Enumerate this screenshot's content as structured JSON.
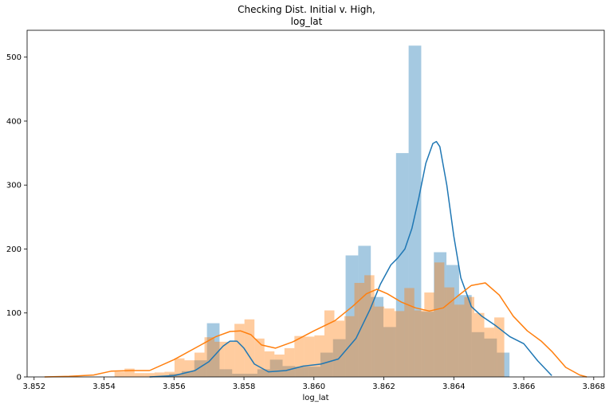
{
  "chart_data": {
    "type": "histogram",
    "title_lines": [
      "Checking Dist. Initial v. High,",
      "log_lat"
    ],
    "xlabel": "log_lat",
    "ylabel": "",
    "xlim": [
      3.8518,
      3.8683
    ],
    "ylim": [
      0,
      542
    ],
    "x_ticks": [
      3.852,
      3.854,
      3.856,
      3.858,
      3.86,
      3.862,
      3.864,
      3.866,
      3.868
    ],
    "x_tick_labels": [
      "3.852",
      "3.854",
      "3.856",
      "3.858",
      "3.860",
      "3.862",
      "3.864",
      "3.866",
      "3.868"
    ],
    "y_ticks": [
      0,
      100,
      200,
      300,
      400,
      500
    ],
    "y_tick_labels": [
      "0",
      "100",
      "200",
      "300",
      "400",
      "500"
    ],
    "grid": false,
    "colors": {
      "blue": "#1f77b4",
      "orange": "#ff7f0e",
      "blue_fill": "rgba(31,119,180,0.4)",
      "orange_fill": "rgba(255,127,14,0.4)"
    },
    "series": [
      {
        "kind": "hist",
        "color": "blue",
        "bin_start": 3.8555,
        "bin_width": 0.0003604,
        "values": [
          1,
          5,
          9,
          26,
          84,
          12,
          5,
          5,
          12,
          27,
          17,
          16,
          16,
          38,
          59,
          190,
          205,
          125,
          78,
          350,
          518,
          102,
          195,
          175,
          128,
          70,
          60,
          38
        ]
      },
      {
        "kind": "hist",
        "color": "orange",
        "bin_start": 3.8543,
        "bin_width": 0.0002857,
        "values": [
          8,
          13,
          6,
          6,
          7,
          8,
          29,
          26,
          38,
          62,
          55,
          55,
          83,
          90,
          60,
          40,
          35,
          45,
          64,
          63,
          65,
          104,
          88,
          95,
          147,
          159,
          110,
          107,
          103,
          139,
          104,
          132,
          179,
          140,
          113,
          125,
          100,
          77,
          93
        ]
      },
      {
        "kind": "kde",
        "color": "blue",
        "x": [
          3.8553,
          3.856,
          3.8566,
          3.857,
          3.8574,
          3.8576,
          3.8578,
          3.858,
          3.8583,
          3.8587,
          3.8592,
          3.8597,
          3.8602,
          3.8607,
          3.8612,
          3.8616,
          3.8619,
          3.8622,
          3.8624,
          3.8626,
          3.8628,
          3.863,
          3.8632,
          3.8634,
          3.8635,
          3.8636,
          3.8638,
          3.864,
          3.8642,
          3.8645,
          3.8648,
          3.8652,
          3.8656,
          3.866,
          3.8664,
          3.8668
        ],
        "y": [
          0,
          2,
          10,
          24,
          48,
          56,
          56,
          45,
          20,
          8,
          10,
          17,
          20,
          28,
          60,
          105,
          145,
          175,
          186,
          200,
          232,
          280,
          334,
          365,
          368,
          360,
          300,
          220,
          155,
          110,
          95,
          80,
          63,
          52,
          25,
          2
        ]
      },
      {
        "kind": "kde",
        "color": "orange",
        "x": [
          3.8523,
          3.853,
          3.8537,
          3.8542,
          3.8548,
          3.8553,
          3.856,
          3.8567,
          3.8572,
          3.8576,
          3.8579,
          3.8582,
          3.8585,
          3.8589,
          3.8594,
          3.86,
          3.8606,
          3.8611,
          3.8615,
          3.8618,
          3.8621,
          3.8625,
          3.8629,
          3.8633,
          3.8637,
          3.8641,
          3.8645,
          3.8649,
          3.8653,
          3.8657,
          3.8661,
          3.8665,
          3.8668,
          3.8672,
          3.8676,
          3.8678
        ],
        "y": [
          0,
          1,
          3,
          9,
          10,
          10,
          27,
          48,
          63,
          71,
          72,
          66,
          50,
          45,
          55,
          72,
          88,
          110,
          130,
          137,
          130,
          117,
          108,
          103,
          108,
          126,
          143,
          147,
          128,
          95,
          72,
          56,
          40,
          15,
          3,
          0
        ]
      }
    ]
  }
}
